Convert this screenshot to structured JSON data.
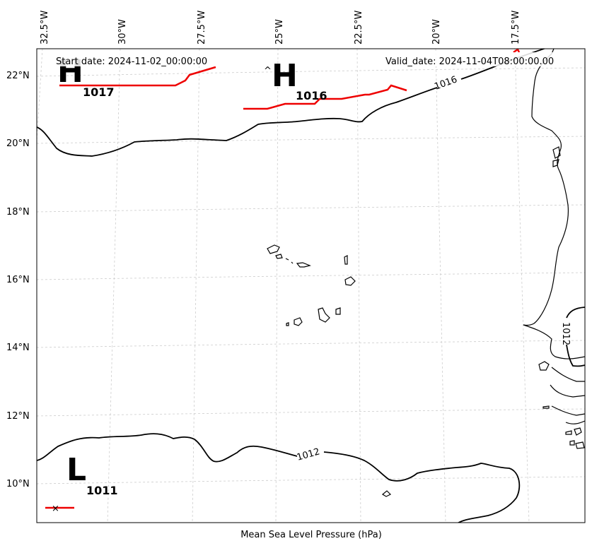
{
  "header": {
    "start_date": "Start date: 2024-11-02_00:00:00",
    "valid_date": "Valid_date: 2024-11-04T08:00:00.00"
  },
  "footer": {
    "caption": "Mean Sea Level Pressure (hPa)"
  },
  "axes": {
    "lon_labels": [
      "32.5°W",
      "30°W",
      "27.5°W",
      "25°W",
      "22.5°W",
      "20°W",
      "17.5°W"
    ],
    "lat_labels": [
      "22°N",
      "20°N",
      "18°N",
      "16°N",
      "14°N",
      "12°N",
      "10°N"
    ]
  },
  "isobars": {
    "north": {
      "value": "1016"
    },
    "south": {
      "value": "1012"
    },
    "east": {
      "value": "1012"
    }
  },
  "pressure_centers": [
    {
      "type": "H",
      "value": "1017"
    },
    {
      "type": "H",
      "value": "1016"
    },
    {
      "type": "L",
      "value": "1011"
    }
  ],
  "colors": {
    "front": "#ee0000",
    "isobar": "#000000",
    "grid": "#cccccc"
  }
}
